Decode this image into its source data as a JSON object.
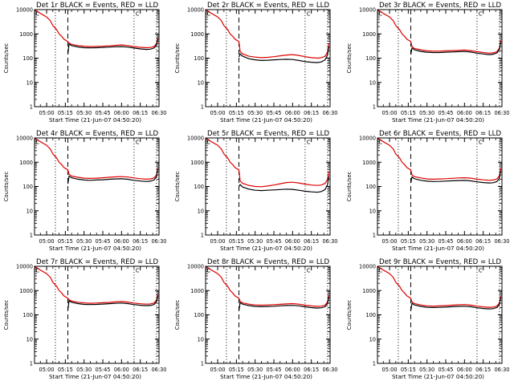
{
  "chart_data": {
    "type": "line",
    "layout": {
      "rows": 3,
      "cols": 3
    },
    "ylabel": "Counts/sec",
    "xlabel": "Start Time (21-Jun-07 04:50:20)",
    "x_ticks": [
      "05:00",
      "05:15",
      "05:30",
      "05:45",
      "06:00",
      "06:15",
      "06:30"
    ],
    "y_ticks": [
      "1",
      "10",
      "100",
      "1000",
      "10000"
    ],
    "y_scale": "log",
    "ylim": [
      1,
      10000
    ],
    "xlim": [
      "04:50:20",
      "06:30"
    ],
    "legend": "none",
    "grid": false,
    "corner_marks": [
      "C",
      "C"
    ],
    "series_colors": {
      "events": "#000000",
      "lld": "#e00000"
    },
    "vlines": [
      {
        "at": "05:07",
        "style": "dotted"
      },
      {
        "at": "05:17",
        "style": "dashed"
      },
      {
        "at": "06:10",
        "style": "dotted"
      },
      {
        "at": "06:28",
        "style": "dotted"
      }
    ],
    "x_times": [
      "05:17",
      "05:18",
      "05:20",
      "05:25",
      "05:30",
      "05:35",
      "05:40",
      "05:45",
      "05:50",
      "05:55",
      "06:00",
      "06:05",
      "06:10",
      "06:15",
      "06:20",
      "06:23",
      "06:26",
      "06:28",
      "06:29"
    ],
    "lld_early": {
      "x": [
        "04:50:20",
        "04:55",
        "05:00",
        "05:03",
        "05:05",
        "05:08",
        "05:10",
        "05:12",
        "05:14",
        "05:16",
        "05:17"
      ],
      "values": [
        10000,
        7000,
        5000,
        3500,
        2200,
        1500,
        1000,
        800,
        600,
        520,
        480
      ]
    },
    "panels": [
      {
        "title": "Det 1r BLACK = Events, RED = LLD",
        "series": [
          {
            "name": "LLD",
            "values": [
              480,
              420,
              370,
              330,
              310,
              300,
              305,
              310,
              320,
              335,
              350,
              330,
              300,
              280,
              270,
              275,
              300,
              400,
              700
            ]
          },
          {
            "name": "Events",
            "values": [
              150,
              380,
              330,
              290,
              270,
              265,
              270,
              275,
              285,
              295,
              300,
              285,
              260,
              240,
              230,
              235,
              260,
              340,
              600
            ]
          }
        ]
      },
      {
        "title": "Det 2r BLACK = Events, RED = LLD",
        "series": [
          {
            "name": "LLD",
            "values": [
              480,
              190,
              150,
              120,
              110,
              105,
              108,
              115,
              125,
              135,
              140,
              130,
              115,
              105,
              100,
              105,
              120,
              180,
              400
            ]
          },
          {
            "name": "Events",
            "values": [
              110,
              150,
              120,
              95,
              85,
              80,
              82,
              85,
              88,
              90,
              88,
              80,
              72,
              68,
              66,
              70,
              85,
              140,
              300
            ]
          }
        ]
      },
      {
        "title": "Det 3r BLACK = Events, RED = LLD",
        "series": [
          {
            "name": "LLD",
            "values": [
              480,
              300,
              250,
              220,
              200,
              195,
              195,
              200,
              205,
              210,
              215,
              205,
              185,
              170,
              160,
              165,
              185,
              260,
              550
            ]
          },
          {
            "name": "Events",
            "values": [
              140,
              260,
              220,
              190,
              175,
              170,
              170,
              175,
              180,
              185,
              188,
              178,
              160,
              148,
              140,
              145,
              165,
              230,
              480
            ]
          }
        ]
      },
      {
        "title": "Det 4r BLACK = Events, RED = LLD",
        "series": [
          {
            "name": "LLD",
            "values": [
              480,
              320,
              270,
              240,
              220,
              215,
              220,
              230,
              240,
              250,
              255,
              245,
              225,
              210,
              200,
              205,
              225,
              300,
              600
            ]
          },
          {
            "name": "Events",
            "values": [
              130,
              270,
              230,
              200,
              185,
              180,
              185,
              190,
              198,
              205,
              208,
              198,
              180,
              168,
              160,
              165,
              185,
              250,
              520
            ]
          }
        ]
      },
      {
        "title": "Det 5r BLACK = Events, RED = LLD",
        "series": [
          {
            "name": "LLD",
            "values": [
              480,
              170,
              135,
              110,
              100,
              98,
              105,
              115,
              130,
              145,
              150,
              140,
              125,
              115,
              110,
              115,
              135,
              200,
              420
            ]
          },
          {
            "name": "Events",
            "values": [
              100,
              120,
              95,
              78,
              70,
              68,
              70,
              72,
              75,
              78,
              76,
              70,
              64,
              60,
              58,
              62,
              75,
              120,
              260
            ]
          }
        ]
      },
      {
        "title": "Det 6r BLACK = Events, RED = LLD",
        "series": [
          {
            "name": "LLD",
            "values": [
              480,
              300,
              255,
              225,
              205,
              200,
              205,
              210,
              218,
              225,
              230,
              220,
              200,
              188,
              180,
              185,
              205,
              280,
              560
            ]
          },
          {
            "name": "Events",
            "values": [
              140,
              250,
              210,
              180,
              165,
              160,
              162,
              166,
              172,
              176,
              178,
              170,
              155,
              145,
              140,
              143,
              160,
              220,
              460
            ]
          }
        ]
      },
      {
        "title": "Det 7r BLACK = Events, RED = LLD",
        "series": [
          {
            "name": "LLD",
            "values": [
              480,
              420,
              370,
              330,
              310,
              300,
              305,
              315,
              325,
              340,
              355,
              335,
              305,
              285,
              275,
              280,
              305,
              410,
              720
            ]
          },
          {
            "name": "Events",
            "values": [
              160,
              380,
              330,
              290,
              270,
              265,
              270,
              278,
              288,
              298,
              305,
              290,
              265,
              248,
              238,
              242,
              265,
              350,
              620
            ]
          }
        ]
      },
      {
        "title": "Det 8r BLACK = Events, RED = LLD",
        "series": [
          {
            "name": "LLD",
            "values": [
              480,
              360,
              310,
              275,
              255,
              250,
              255,
              262,
              272,
              282,
              290,
              275,
              250,
              232,
              222,
              228,
              252,
              340,
              650
            ]
          },
          {
            "name": "Events",
            "values": [
              150,
              320,
              275,
              240,
              222,
              216,
              220,
              226,
              234,
              242,
              246,
              234,
              212,
              198,
              190,
              195,
              215,
              290,
              560
            ]
          }
        ]
      },
      {
        "title": "Det 9r BLACK = Events, RED = LLD",
        "series": [
          {
            "name": "LLD",
            "values": [
              480,
              340,
              290,
              255,
              235,
              228,
              232,
              240,
              250,
              258,
              265,
              252,
              228,
              212,
              204,
              208,
              230,
              310,
              600
            ]
          },
          {
            "name": "Events",
            "values": [
              150,
              300,
              255,
              222,
              205,
              200,
              203,
              208,
              216,
              222,
              226,
              215,
              196,
              183,
              176,
              180,
              200,
              270,
              520
            ]
          }
        ]
      }
    ]
  }
}
